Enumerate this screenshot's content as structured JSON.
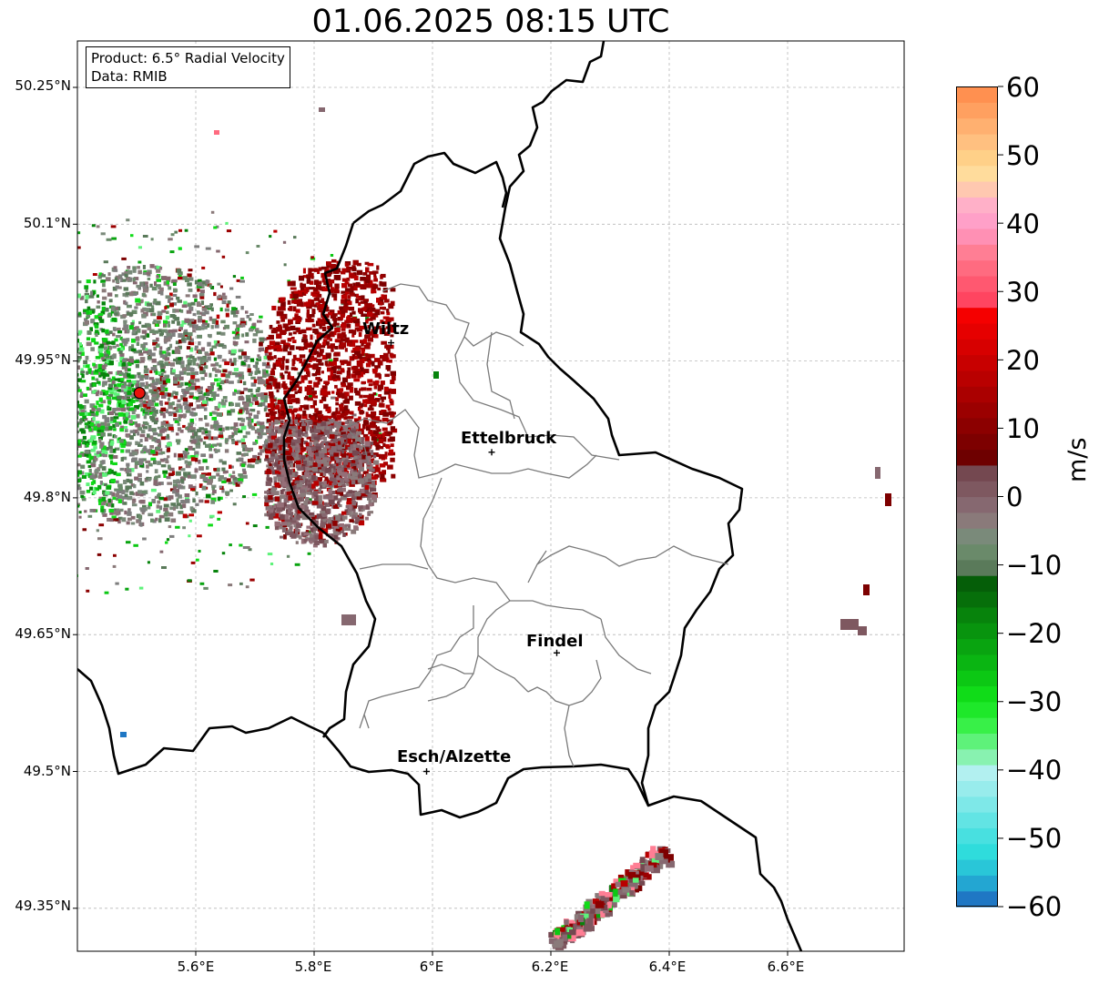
{
  "title": "01.06.2025 08:15 UTC",
  "info": {
    "product": "Product: 6.5° Radial Velocity",
    "data": "Data: RMIB"
  },
  "axes": {
    "lat_labels": [
      "50.25°N",
      "50.1°N",
      "49.95°N",
      "49.8°N",
      "49.65°N",
      "49.5°N",
      "49.35°N"
    ],
    "lon_labels": [
      "5.6°E",
      "5.8°E",
      "6°E",
      "6.2°E",
      "6.4°E",
      "6.6°E"
    ],
    "lat_values": [
      50.25,
      50.1,
      49.95,
      49.8,
      49.65,
      49.5,
      49.35
    ],
    "lon_values": [
      5.6,
      5.8,
      6.0,
      6.2,
      6.4,
      6.6
    ],
    "grid": true
  },
  "cities": [
    {
      "name": "Wiltz",
      "lon": 5.93,
      "lat": 49.97
    },
    {
      "name": "Ettelbruck",
      "lon": 6.1,
      "lat": 49.85
    },
    {
      "name": "Findel",
      "lon": 6.21,
      "lat": 49.63
    },
    {
      "name": "Esch/Alzette",
      "lon": 5.99,
      "lat": 49.5
    }
  ],
  "radar_site": {
    "lon": 5.505,
    "lat": 49.915,
    "color": "#e8140c"
  },
  "colorbar": {
    "label": "m/s",
    "min": -60,
    "max": 60,
    "ticks": [
      "60",
      "50",
      "40",
      "30",
      "20",
      "10",
      "0",
      "−10",
      "−20",
      "−30",
      "−40",
      "−50",
      "−60"
    ],
    "tick_values": [
      60,
      50,
      40,
      30,
      20,
      10,
      0,
      -10,
      -20,
      -30,
      -40,
      -50,
      -60
    ],
    "colors_bottom_to_top": [
      "#1f77c4",
      "#23a6d2",
      "#29c6d8",
      "#2fdcdc",
      "#48e0e0",
      "#62e4e4",
      "#7ee8e8",
      "#98ecec",
      "#b2f0f0",
      "#88f2b0",
      "#5ef27a",
      "#38f048",
      "#1ee82a",
      "#10dc18",
      "#0cc814",
      "#0ab512",
      "#09a410",
      "#08940e",
      "#07830c",
      "#066f0a",
      "#055e08",
      "#5a7a5a",
      "#6a8a6a",
      "#7a8a7a",
      "#8a7a7a",
      "#866870",
      "#7e5860",
      "#744850",
      "#6e0000",
      "#7d0000",
      "#8c0000",
      "#9b0000",
      "#aa0000",
      "#b90000",
      "#c80000",
      "#d70000",
      "#e60000",
      "#f50000",
      "#ff4560",
      "#ff5870",
      "#ff6b80",
      "#ff7e94",
      "#ff90b4",
      "#ffa0c8",
      "#ffb0c8",
      "#ffc8b0",
      "#ffdc9c",
      "#ffd088",
      "#ffc080",
      "#ffb070",
      "#ffa060",
      "#ff9050"
    ]
  }
}
